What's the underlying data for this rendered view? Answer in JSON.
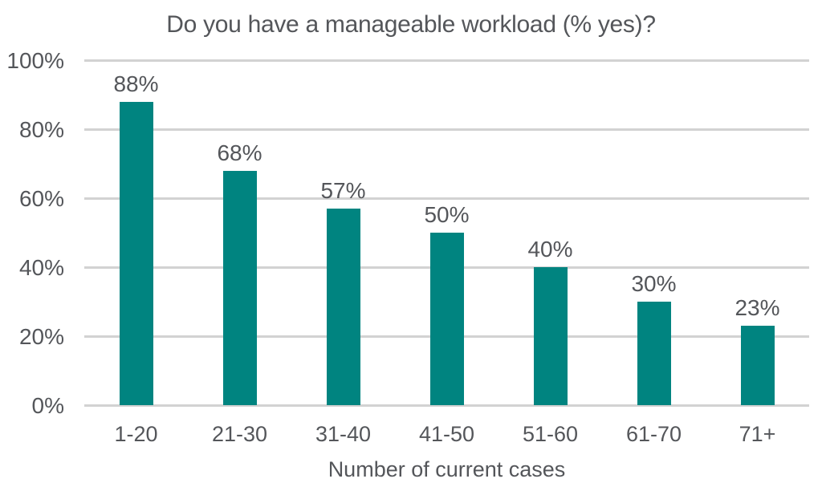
{
  "chart_data": {
    "type": "bar",
    "title": "Do you have a manageable workload (% yes)?",
    "xlabel": "Number of current cases",
    "ylabel": "",
    "categories": [
      "1-20",
      "21-30",
      "31-40",
      "41-50",
      "51-60",
      "61-70",
      "71+"
    ],
    "values": [
      88,
      68,
      57,
      50,
      40,
      30,
      23
    ],
    "value_labels": [
      "88%",
      "68%",
      "57%",
      "50%",
      "40%",
      "30%",
      "23%"
    ],
    "ylim": [
      0,
      100
    ],
    "yticks": [
      0,
      20,
      40,
      60,
      80,
      100
    ],
    "ytick_labels": [
      "0%",
      "20%",
      "40%",
      "60%",
      "80%",
      "100%"
    ],
    "grid": "horizontal-behind-bars",
    "legend": "none",
    "colors": {
      "bar": "#008480",
      "text": "#54565A",
      "gridline": "#D2D2D2",
      "background": "#FFFFFF"
    }
  }
}
